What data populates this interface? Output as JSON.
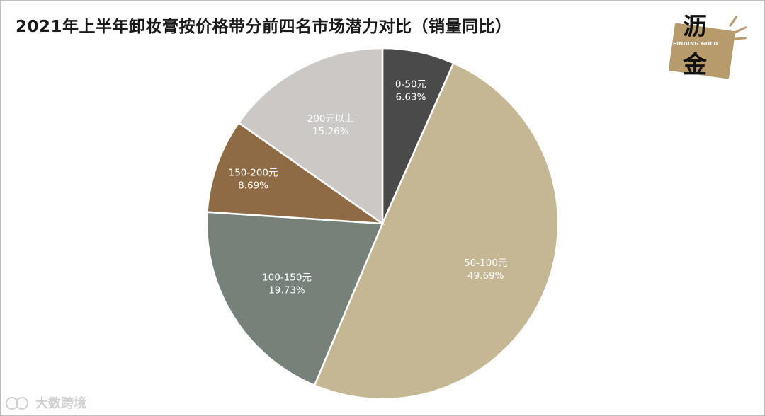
{
  "title": "2021年上半年卸妆膏按价格带分前四名市场潜力对比（销量同比）",
  "logo": {
    "char_top": "沥",
    "char_bottom": "金",
    "subtitle": "FINDING GOLD"
  },
  "watermark": {
    "text": "大数跨境"
  },
  "colors": {
    "slice_0_50": "#4a4a4a",
    "slice_50_100": "#c5b694",
    "slice_100_150": "#76817a",
    "slice_150_200": "#8f6b45",
    "slice_200_plus": "#cbc8c6",
    "brand_gold": "#b79b6c"
  },
  "chart_data": {
    "type": "pie",
    "title": "2021年上半年卸妆膏按价格带分前四名市场潜力对比（销量同比）",
    "slices": [
      {
        "label": "0-50元",
        "value": 6.63,
        "value_label": "6.63%"
      },
      {
        "label": "50-100元",
        "value": 49.69,
        "value_label": "49.69%"
      },
      {
        "label": "100-150元",
        "value": 19.73,
        "value_label": "19.73%"
      },
      {
        "label": "150-200元",
        "value": 8.69,
        "value_label": "8.69%"
      },
      {
        "label": "200元以上",
        "value": 15.26,
        "value_label": "15.26%"
      }
    ],
    "start_angle": "12 o'clock",
    "direction": "clockwise",
    "legend": "none"
  }
}
